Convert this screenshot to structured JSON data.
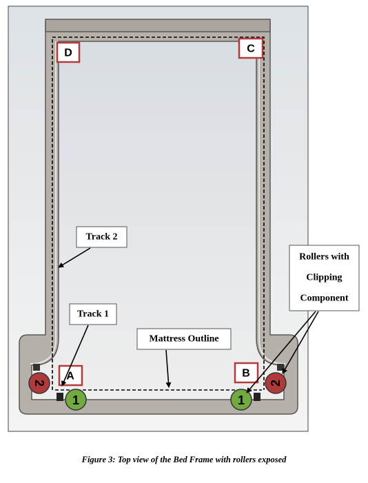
{
  "diagram": {
    "corner_labels": {
      "a": "A",
      "b": "B",
      "c": "C",
      "d": "D"
    },
    "callouts": {
      "track_1": "Track 1",
      "track_2": "Track 2",
      "mattress_outline": "Mattress Outline",
      "rollers": [
        "Rollers with",
        "Clipping",
        "Component"
      ]
    },
    "roller_labels": {
      "green": "1",
      "red": "2"
    },
    "colors": {
      "frame_fill": "#b3aea8",
      "frame_edge": "#5b5753",
      "roller_green": "#71aa3f",
      "roller_red": "#b03a3a",
      "corner_box_border": "#b33a3a",
      "background_gradient_top": "#dfe4e8",
      "background_gradient_bottom": "#f5f5f5"
    }
  },
  "caption": "Figure 3: Top view of the Bed Frame with rollers exposed"
}
